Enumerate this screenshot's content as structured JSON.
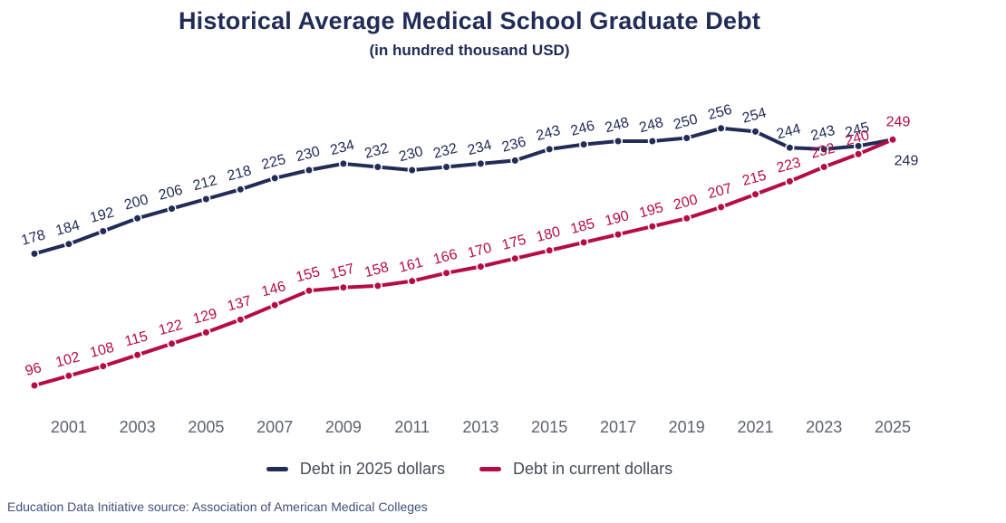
{
  "chart_data": {
    "type": "line",
    "title": "Historical Average Medical School Graduate Debt",
    "subtitle": "(in hundred thousand USD)",
    "x_years": [
      2000,
      2001,
      2002,
      2003,
      2004,
      2005,
      2006,
      2007,
      2008,
      2009,
      2010,
      2011,
      2012,
      2013,
      2014,
      2015,
      2016,
      2017,
      2018,
      2019,
      2020,
      2021,
      2022,
      2023,
      2024,
      2025
    ],
    "x_tick_labels": [
      "2001",
      "2003",
      "2005",
      "2007",
      "2009",
      "2011",
      "2013",
      "2015",
      "2017",
      "2019",
      "2021",
      "2023",
      "2025"
    ],
    "series": [
      {
        "name": "Debt in 2025 dollars",
        "color": "#222c56",
        "values": [
          178,
          184,
          192,
          200,
          206,
          212,
          218,
          225,
          230,
          234,
          232,
          230,
          232,
          234,
          236,
          243,
          246,
          248,
          248,
          250,
          256,
          254,
          244,
          243,
          245,
          249
        ]
      },
      {
        "name": "Debt in current dollars",
        "color": "#b50c47",
        "values": [
          96,
          102,
          108,
          115,
          122,
          129,
          137,
          146,
          155,
          157,
          158,
          161,
          166,
          170,
          175,
          180,
          185,
          190,
          195,
          200,
          207,
          215,
          223,
          232,
          240,
          249
        ]
      }
    ],
    "ylim": [
      90,
      270
    ],
    "grid": false,
    "legend_position": "bottom",
    "data_labels": true,
    "tick_color": "#5d6270",
    "source": "Education Data Initiative source: Association of American Medical Colleges"
  }
}
